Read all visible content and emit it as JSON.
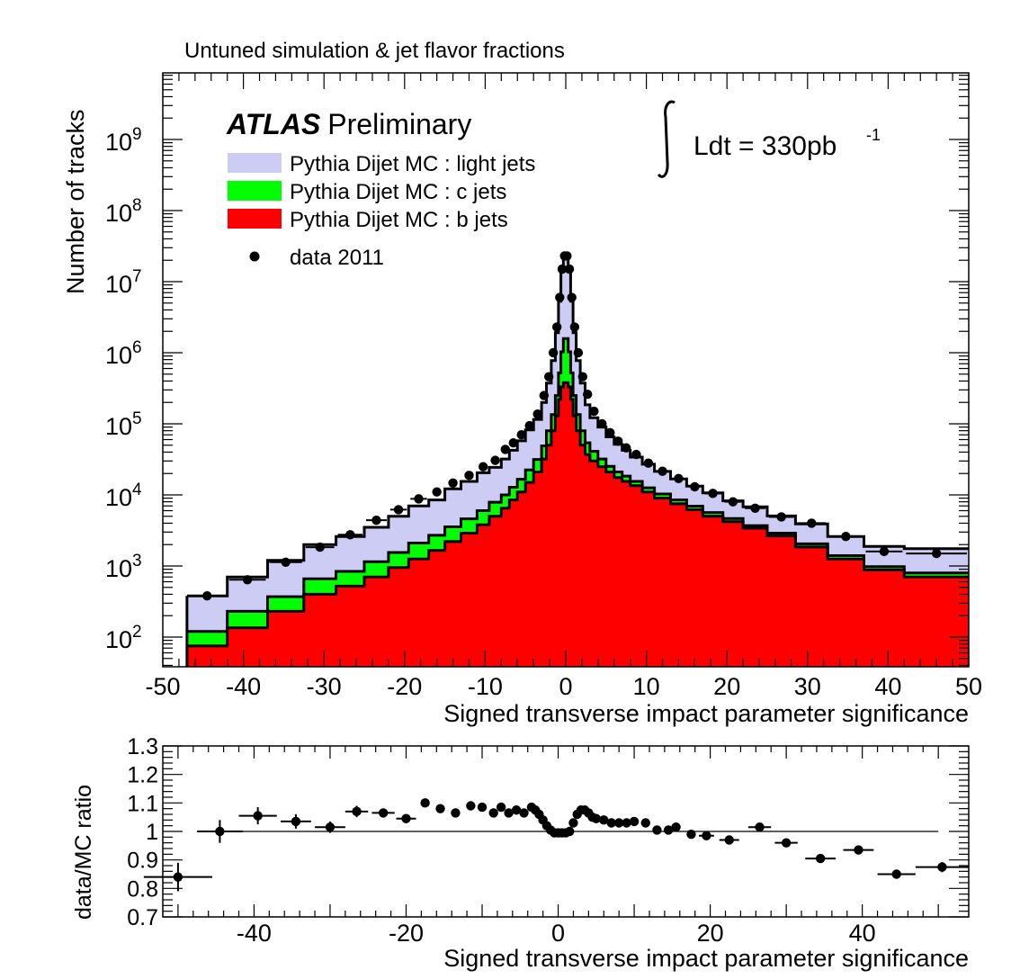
{
  "figure_title": "Untuned simulation & jet flavor fractions",
  "atlas_bold": "ATLAS",
  "atlas_rest": "Preliminary",
  "lumi_text": "Ldt = 330pb",
  "lumi_exp": "-1",
  "colors": {
    "light": "#ccccf5",
    "c": "#00ff00",
    "b": "#ff0000",
    "data": "#000000"
  },
  "chart_data": [
    {
      "type": "area",
      "title": "",
      "xlabel": "Signed transverse impact parameter significance",
      "ylabel": "Number of tracks",
      "xlim": [
        -50,
        50
      ],
      "ylim": [
        40,
        1000000000
      ],
      "log_y": true,
      "grid": false,
      "legend_position": "top-left",
      "x_ticks": [
        "-50",
        "-40",
        "-30",
        "-20",
        "-10",
        "0",
        "10",
        "20",
        "30",
        "40",
        "50"
      ],
      "y_ticks": [
        {
          "base": "10",
          "exp": "2"
        },
        {
          "base": "10",
          "exp": "3"
        },
        {
          "base": "10",
          "exp": "4"
        },
        {
          "base": "10",
          "exp": "5"
        },
        {
          "base": "10",
          "exp": "6"
        },
        {
          "base": "10",
          "exp": "7"
        },
        {
          "base": "10",
          "exp": "8"
        },
        {
          "base": "10",
          "exp": "9"
        }
      ],
      "legend": [
        {
          "label": "Pythia Dijet MC : light jets",
          "kind": "fill",
          "color": "#ccccf5"
        },
        {
          "label": "Pythia Dijet MC : c jets",
          "kind": "fill",
          "color": "#00ff00"
        },
        {
          "label": "Pythia Dijet MC : b jets",
          "kind": "fill",
          "color": "#ff0000"
        },
        {
          "label": "data 2011",
          "kind": "marker",
          "color": "#000000"
        }
      ],
      "bin_edges": [
        -47,
        -42,
        -37,
        -32.5,
        -28.5,
        -25,
        -22,
        -19.5,
        -17,
        -15,
        -13,
        -11,
        -9.5,
        -8,
        -7,
        -6,
        -5,
        -4,
        -3,
        -2.4,
        -1.8,
        -1.3,
        -0.9,
        -0.6,
        -0.3,
        0,
        0.3,
        0.6,
        0.9,
        1.3,
        1.8,
        2.4,
        3,
        4,
        5,
        6,
        7,
        8,
        9.5,
        11,
        13,
        15,
        17,
        19.5,
        22,
        25,
        28.5,
        32.5,
        37,
        42,
        50
      ],
      "series": [
        {
          "name": "Pythia Dijet MC : b jets",
          "values": [
            75,
            135,
            230,
            400,
            520,
            700,
            950,
            1250,
            1650,
            2200,
            2900,
            3800,
            5000,
            6500,
            8500,
            11000,
            15000,
            21000,
            32000,
            50000,
            80000,
            130000,
            220000,
            330000,
            380000,
            380000,
            330000,
            220000,
            130000,
            80000,
            50000,
            37000,
            30000,
            25000,
            21000,
            17500,
            15500,
            13500,
            11000,
            9000,
            7500,
            6200,
            5000,
            4200,
            3400,
            2650,
            1850,
            1250,
            880,
            700
          ]
        },
        {
          "name": "Pythia Dijet MC : c jets",
          "values": [
            45,
            95,
            140,
            260,
            320,
            450,
            600,
            850,
            1050,
            1350,
            1700,
            2200,
            2900,
            3500,
            4300,
            5600,
            7500,
            10500,
            17000,
            30000,
            55000,
            120000,
            300000,
            700000,
            1200000,
            1200000,
            700000,
            300000,
            120000,
            55000,
            30000,
            17000,
            11000,
            7000,
            4300,
            3500,
            2900,
            2000,
            1600,
            1300,
            1000,
            750,
            650,
            450,
            300,
            250,
            200,
            150,
            100,
            100
          ]
        },
        {
          "name": "Pythia Dijet MC : light jets",
          "values": [
            260,
            470,
            830,
            1340,
            1760,
            2350,
            3450,
            4900,
            5800,
            8650,
            10900,
            14500,
            16500,
            22000,
            29700,
            41000,
            59500,
            84000,
            151000,
            295000,
            640000,
            1660000,
            4800000,
            12700000,
            20500000,
            20500000,
            12700000,
            4800000,
            1660000,
            640000,
            295000,
            131000,
            81000,
            58000,
            40300,
            30500,
            24100,
            18500,
            14400,
            11100,
            8300,
            6300,
            5000,
            3600,
            3100,
            2150,
            1850,
            1200,
            900,
            950
          ]
        },
        {
          "name": "data 2011",
          "values": [
            380,
            640,
            1130,
            1840,
            2750,
            4400,
            6200,
            8800,
            11000,
            14700,
            18800,
            24900,
            30600,
            43600,
            54000,
            70000,
            94000,
            137000,
            250000,
            460000,
            1000000,
            2300000,
            6000000,
            15000000,
            23000000,
            23000000,
            15000000,
            6000000,
            2300000,
            1000000,
            460000,
            260000,
            150000,
            100000,
            75000,
            57000,
            46000,
            37000,
            28000,
            21500,
            17000,
            13000,
            10500,
            8000,
            6500,
            4900,
            4000,
            2600,
            1600,
            1500
          ]
        }
      ]
    },
    {
      "type": "scatter",
      "title": "",
      "xlabel": "Signed transverse impact parameter significance",
      "ylabel": "data/MC ratio",
      "xlim": [
        -52,
        54
      ],
      "ylim": [
        0.7,
        1.3
      ],
      "grid": false,
      "reference_line": 1,
      "x_ticks": [
        "-40",
        "-20",
        "0",
        "20",
        "40"
      ],
      "y_ticks": [
        "0.7",
        "0.8",
        "0.9",
        "1",
        "1.1",
        "1.2",
        "1.3"
      ],
      "series": [
        {
          "x": [
            -50,
            -44.5,
            -39.5,
            -34.5,
            -30,
            -26.5,
            -23,
            -20,
            -17.5,
            -15.5,
            -13.5,
            -11.5,
            -10,
            -8.5,
            -7.5,
            -6.5,
            -5.5,
            -4.5,
            -3.5,
            -3,
            -2.5,
            -2,
            -1.5,
            -1,
            -0.5,
            0,
            0.5,
            1,
            1.5,
            2,
            2.5,
            3,
            3.5,
            4,
            4.5,
            5,
            6,
            7,
            8,
            9,
            10,
            11.5,
            13,
            14.5,
            15.5,
            17.5,
            19.5,
            22.5,
            26.5,
            30,
            34.5,
            39.5,
            44.5,
            50.5
          ],
          "y": [
            0.84,
            1.0,
            1.055,
            1.035,
            1.015,
            1.07,
            1.065,
            1.045,
            1.1,
            1.08,
            1.065,
            1.09,
            1.085,
            1.065,
            1.085,
            1.065,
            1.075,
            1.065,
            1.085,
            1.075,
            1.06,
            1.04,
            1.02,
            1.005,
            0.995,
            0.995,
            0.995,
            0.995,
            1.0,
            1.03,
            1.06,
            1.075,
            1.075,
            1.065,
            1.05,
            1.045,
            1.04,
            1.03,
            1.03,
            1.03,
            1.035,
            1.03,
            1.005,
            1.005,
            1.015,
            0.99,
            0.985,
            0.97,
            1.015,
            0.96,
            0.905,
            0.935,
            0.85,
            0.875
          ],
          "x_err": [
            4.5,
            3,
            2.5,
            2,
            2,
            1.5,
            1.5,
            1.3,
            0,
            0,
            0,
            0,
            0,
            0,
            0,
            0,
            0,
            0,
            0,
            0,
            0,
            0,
            0,
            0,
            0,
            0,
            0,
            0,
            0,
            0,
            0,
            0,
            0,
            0,
            0,
            0,
            0,
            0,
            0,
            0,
            0,
            0,
            0,
            0,
            0,
            0,
            1,
            1.3,
            1.5,
            1.5,
            2,
            2,
            2.5,
            3.5
          ],
          "y_err": [
            0.05,
            0.04,
            0.03,
            0.025,
            0.02,
            0.02,
            0.015,
            0.012,
            0,
            0,
            0,
            0,
            0,
            0,
            0,
            0,
            0,
            0,
            0,
            0,
            0,
            0,
            0,
            0,
            0,
            0,
            0,
            0,
            0,
            0,
            0,
            0,
            0,
            0,
            0,
            0,
            0,
            0,
            0,
            0,
            0,
            0,
            0,
            0,
            0,
            0,
            0,
            0,
            0.01,
            0,
            0,
            0,
            0.012,
            0.018
          ]
        }
      ]
    }
  ]
}
